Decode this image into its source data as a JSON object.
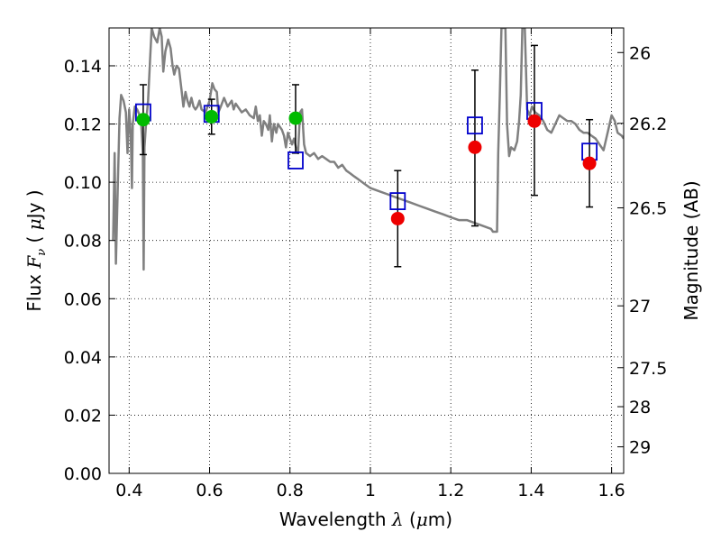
{
  "chart_data": {
    "type": "scatter",
    "xlabel_text": "Wavelength",
    "xlabel_symbol": "λ",
    "xlabel_unit_open": "(",
    "xlabel_unit_mu": "μ",
    "xlabel_unit_rest": "m)",
    "ylabel_text": "Flux",
    "ylabel_symbol": "F",
    "ylabel_subscript": "ν",
    "ylabel_unit_open": "(",
    "ylabel_unit_mu": "μ",
    "ylabel_unit_rest": "Jy )",
    "y2label": "Magnitude (AB)",
    "xlim": [
      0.35,
      1.63
    ],
    "ylim": [
      0.0,
      0.153
    ],
    "grid": true,
    "x_ticks": [
      {
        "value": 0.4,
        "label": "0.4"
      },
      {
        "value": 0.6,
        "label": "0.6"
      },
      {
        "value": 0.8,
        "label": "0.8"
      },
      {
        "value": 1.0,
        "label": "1"
      },
      {
        "value": 1.2,
        "label": "1.2"
      },
      {
        "value": 1.4,
        "label": "1.4"
      },
      {
        "value": 1.6,
        "label": "1.6"
      }
    ],
    "y_ticks": [
      {
        "value": 0.0,
        "label": "0.00"
      },
      {
        "value": 0.02,
        "label": "0.02"
      },
      {
        "value": 0.04,
        "label": "0.04"
      },
      {
        "value": 0.06,
        "label": "0.06"
      },
      {
        "value": 0.08,
        "label": "0.08"
      },
      {
        "value": 0.1,
        "label": "0.10"
      },
      {
        "value": 0.12,
        "label": "0.12"
      },
      {
        "value": 0.14,
        "label": "0.14"
      }
    ],
    "y2_ticks": [
      {
        "mag": 26,
        "label": "26"
      },
      {
        "mag": 26.2,
        "label": "26.2"
      },
      {
        "mag": 26.5,
        "label": "26.5"
      },
      {
        "mag": 27,
        "label": "27"
      },
      {
        "mag": 27.5,
        "label": "27.5"
      },
      {
        "mag": 28,
        "label": "28"
      },
      {
        "mag": 29,
        "label": "29"
      }
    ],
    "spectrum": {
      "color": "#808080",
      "points": [
        [
          0.36,
          0.08
        ],
        [
          0.364,
          0.11
        ],
        [
          0.367,
          0.072
        ],
        [
          0.372,
          0.1
        ],
        [
          0.376,
          0.122
        ],
        [
          0.38,
          0.13
        ],
        [
          0.386,
          0.128
        ],
        [
          0.392,
          0.124
        ],
        [
          0.396,
          0.11
        ],
        [
          0.4,
          0.125
        ],
        [
          0.404,
          0.116
        ],
        [
          0.407,
          0.098
        ],
        [
          0.409,
          0.12
        ],
        [
          0.414,
          0.126
        ],
        [
          0.42,
          0.125
        ],
        [
          0.426,
          0.123
        ],
        [
          0.43,
          0.12
        ],
        [
          0.434,
          0.11
        ],
        [
          0.436,
          0.07
        ],
        [
          0.438,
          0.112
        ],
        [
          0.442,
          0.12
        ],
        [
          0.447,
          0.128
        ],
        [
          0.452,
          0.142
        ],
        [
          0.456,
          0.153
        ],
        [
          0.462,
          0.15
        ],
        [
          0.47,
          0.148
        ],
        [
          0.476,
          0.153
        ],
        [
          0.481,
          0.15
        ],
        [
          0.485,
          0.138
        ],
        [
          0.49,
          0.145
        ],
        [
          0.497,
          0.149
        ],
        [
          0.503,
          0.146
        ],
        [
          0.508,
          0.14
        ],
        [
          0.512,
          0.137
        ],
        [
          0.518,
          0.14
        ],
        [
          0.524,
          0.139
        ],
        [
          0.53,
          0.132
        ],
        [
          0.535,
          0.126
        ],
        [
          0.54,
          0.131
        ],
        [
          0.545,
          0.128
        ],
        [
          0.55,
          0.126
        ],
        [
          0.555,
          0.129
        ],
        [
          0.56,
          0.126
        ],
        [
          0.565,
          0.125
        ],
        [
          0.57,
          0.126
        ],
        [
          0.575,
          0.128
        ],
        [
          0.58,
          0.125
        ],
        [
          0.59,
          0.124
        ],
        [
          0.6,
          0.128
        ],
        [
          0.607,
          0.134
        ],
        [
          0.612,
          0.132
        ],
        [
          0.618,
          0.131
        ],
        [
          0.622,
          0.124
        ],
        [
          0.628,
          0.126
        ],
        [
          0.636,
          0.129
        ],
        [
          0.645,
          0.126
        ],
        [
          0.655,
          0.128
        ],
        [
          0.66,
          0.125
        ],
        [
          0.665,
          0.127
        ],
        [
          0.67,
          0.126
        ],
        [
          0.68,
          0.124
        ],
        [
          0.69,
          0.125
        ],
        [
          0.7,
          0.123
        ],
        [
          0.71,
          0.122
        ],
        [
          0.715,
          0.126
        ],
        [
          0.72,
          0.121
        ],
        [
          0.725,
          0.123
        ],
        [
          0.73,
          0.116
        ],
        [
          0.735,
          0.121
        ],
        [
          0.74,
          0.12
        ],
        [
          0.746,
          0.118
        ],
        [
          0.75,
          0.123
        ],
        [
          0.755,
          0.114
        ],
        [
          0.76,
          0.12
        ],
        [
          0.766,
          0.117
        ],
        [
          0.77,
          0.12
        ],
        [
          0.775,
          0.119
        ],
        [
          0.78,
          0.118
        ],
        [
          0.785,
          0.116
        ],
        [
          0.79,
          0.112
        ],
        [
          0.795,
          0.117
        ],
        [
          0.8,
          0.115
        ],
        [
          0.805,
          0.113
        ],
        [
          0.81,
          0.115
        ],
        [
          0.815,
          0.112
        ],
        [
          0.82,
          0.11
        ],
        [
          0.825,
          0.124
        ],
        [
          0.83,
          0.125
        ],
        [
          0.835,
          0.113
        ],
        [
          0.84,
          0.11
        ],
        [
          0.85,
          0.109
        ],
        [
          0.86,
          0.11
        ],
        [
          0.87,
          0.108
        ],
        [
          0.88,
          0.109
        ],
        [
          0.89,
          0.108
        ],
        [
          0.9,
          0.107
        ],
        [
          0.91,
          0.107
        ],
        [
          0.92,
          0.105
        ],
        [
          0.93,
          0.106
        ],
        [
          0.94,
          0.104
        ],
        [
          0.95,
          0.103
        ],
        [
          0.96,
          0.102
        ],
        [
          0.97,
          0.101
        ],
        [
          0.98,
          0.1
        ],
        [
          0.99,
          0.099
        ],
        [
          1.0,
          0.098
        ],
        [
          1.02,
          0.097
        ],
        [
          1.04,
          0.096
        ],
        [
          1.06,
          0.095
        ],
        [
          1.08,
          0.094
        ],
        [
          1.1,
          0.093
        ],
        [
          1.12,
          0.092
        ],
        [
          1.14,
          0.091
        ],
        [
          1.16,
          0.09
        ],
        [
          1.18,
          0.089
        ],
        [
          1.2,
          0.088
        ],
        [
          1.22,
          0.087
        ],
        [
          1.24,
          0.087
        ],
        [
          1.26,
          0.086
        ],
        [
          1.28,
          0.085
        ],
        [
          1.3,
          0.084
        ],
        [
          1.305,
          0.083
        ],
        [
          1.315,
          0.083
        ],
        [
          1.318,
          0.11
        ],
        [
          1.322,
          0.13
        ],
        [
          1.326,
          0.153
        ],
        [
          1.336,
          0.153
        ],
        [
          1.34,
          0.12
        ],
        [
          1.345,
          0.109
        ],
        [
          1.35,
          0.112
        ],
        [
          1.358,
          0.111
        ],
        [
          1.365,
          0.114
        ],
        [
          1.37,
          0.121
        ],
        [
          1.374,
          0.13
        ],
        [
          1.378,
          0.153
        ],
        [
          1.384,
          0.153
        ],
        [
          1.39,
          0.125
        ],
        [
          1.396,
          0.123
        ],
        [
          1.402,
          0.126
        ],
        [
          1.41,
          0.124
        ],
        [
          1.42,
          0.123
        ],
        [
          1.43,
          0.121
        ],
        [
          1.44,
          0.118
        ],
        [
          1.45,
          0.117
        ],
        [
          1.46,
          0.12
        ],
        [
          1.47,
          0.123
        ],
        [
          1.48,
          0.122
        ],
        [
          1.49,
          0.121
        ],
        [
          1.5,
          0.121
        ],
        [
          1.51,
          0.12
        ],
        [
          1.52,
          0.118
        ],
        [
          1.53,
          0.117
        ],
        [
          1.54,
          0.117
        ],
        [
          1.55,
          0.116
        ],
        [
          1.56,
          0.115
        ],
        [
          1.57,
          0.113
        ],
        [
          1.58,
          0.111
        ],
        [
          1.59,
          0.117
        ],
        [
          1.6,
          0.123
        ],
        [
          1.608,
          0.121
        ],
        [
          1.615,
          0.117
        ],
        [
          1.625,
          0.116
        ],
        [
          1.63,
          0.115
        ]
      ]
    },
    "observed_optical": {
      "color": "#00bb00",
      "points": [
        {
          "x": 0.435,
          "y": 0.1215,
          "err_low": 0.1095,
          "err_high": 0.1335
        },
        {
          "x": 0.605,
          "y": 0.1225,
          "err_low": 0.1165,
          "err_high": 0.1285
        },
        {
          "x": 0.814,
          "y": 0.122,
          "err_low": 0.11,
          "err_high": 0.1335
        }
      ]
    },
    "observed_nir": {
      "color": "#ee0000",
      "points": [
        {
          "x": 1.068,
          "y": 0.0875,
          "err_low": 0.071,
          "err_high": 0.104
        },
        {
          "x": 1.26,
          "y": 0.112,
          "err_low": 0.085,
          "err_high": 0.1385
        },
        {
          "x": 1.408,
          "y": 0.121,
          "err_low": 0.0955,
          "err_high": 0.147
        },
        {
          "x": 1.545,
          "y": 0.1065,
          "err_low": 0.0915,
          "err_high": 0.1215
        }
      ]
    },
    "model_photometry": {
      "color": "#0000cc",
      "points": [
        {
          "x": 0.435,
          "y": 0.124
        },
        {
          "x": 0.605,
          "y": 0.1235
        },
        {
          "x": 0.814,
          "y": 0.1075
        },
        {
          "x": 1.068,
          "y": 0.0935
        },
        {
          "x": 1.26,
          "y": 0.1195
        },
        {
          "x": 1.408,
          "y": 0.1245
        },
        {
          "x": 1.545,
          "y": 0.1105
        }
      ]
    }
  }
}
